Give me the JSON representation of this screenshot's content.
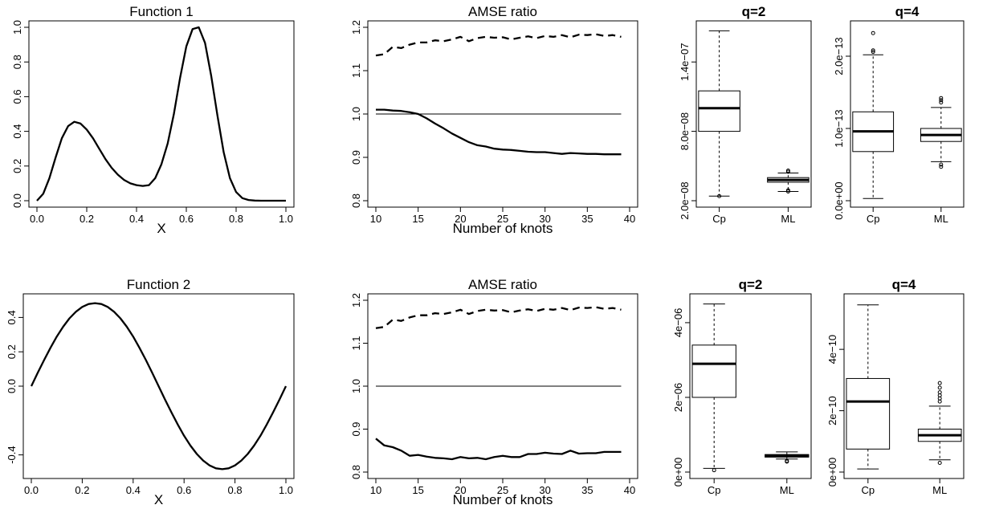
{
  "chart_data": [
    {
      "type": "line",
      "title": "Function 1",
      "xlabel": "X",
      "ylabel": "",
      "xlim": [
        0,
        1
      ],
      "ylim": [
        0,
        1
      ],
      "xticks": [
        0,
        0.2,
        0.4,
        0.6,
        0.8,
        1
      ],
      "xtick_labels": [
        "0.0",
        "0.2",
        "0.4",
        "0.6",
        "0.8",
        "1.0"
      ],
      "yticks": [
        0,
        0.2,
        0.4,
        0.6,
        0.8,
        1
      ],
      "ytick_labels": [
        "0.0",
        "0.2",
        "0.4",
        "0.6",
        "0.8",
        "1.0"
      ],
      "series": [
        {
          "x": [
            0,
            0.025,
            0.05,
            0.075,
            0.1,
            0.125,
            0.15,
            0.175,
            0.2,
            0.225,
            0.25,
            0.275,
            0.3,
            0.325,
            0.35,
            0.375,
            0.4,
            0.425,
            0.45,
            0.475,
            0.5,
            0.525,
            0.55,
            0.575,
            0.6,
            0.625,
            0.65,
            0.675,
            0.7,
            0.725,
            0.75,
            0.775,
            0.8,
            0.825,
            0.85,
            0.875,
            0.9,
            0.925,
            0.95,
            0.975,
            1
          ],
          "y": [
            0.0,
            0.04,
            0.13,
            0.25,
            0.36,
            0.43,
            0.455,
            0.445,
            0.41,
            0.36,
            0.3,
            0.24,
            0.19,
            0.15,
            0.12,
            0.1,
            0.09,
            0.085,
            0.09,
            0.13,
            0.21,
            0.33,
            0.5,
            0.71,
            0.89,
            0.99,
            1.0,
            0.91,
            0.72,
            0.49,
            0.28,
            0.13,
            0.05,
            0.015,
            0.004,
            0.001,
            0.0,
            0.0,
            0.0,
            0.0,
            0.0
          ]
        }
      ]
    },
    {
      "type": "line",
      "title": "AMSE ratio",
      "xlabel": "Number of knots",
      "ylabel": "",
      "xlim": [
        10,
        40
      ],
      "ylim": [
        0.8,
        1.2
      ],
      "xticks": [
        10,
        15,
        20,
        25,
        30,
        35,
        40
      ],
      "xtick_labels": [
        "10",
        "15",
        "20",
        "25",
        "30",
        "35",
        "40"
      ],
      "yticks": [
        0.8,
        0.9,
        1.0,
        1.1,
        1.2
      ],
      "ytick_labels": [
        "0.8",
        "0.9",
        "1.0",
        "1.1",
        "1.2"
      ],
      "reference_y": 1.0,
      "x": [
        10,
        11,
        12,
        13,
        14,
        15,
        16,
        17,
        18,
        19,
        20,
        21,
        22,
        23,
        24,
        25,
        26,
        27,
        28,
        29,
        30,
        31,
        32,
        33,
        34,
        35,
        36,
        37,
        38,
        39
      ],
      "series": [
        {
          "style": "dashed",
          "values": [
            1.135,
            1.138,
            1.155,
            1.152,
            1.16,
            1.165,
            1.165,
            1.17,
            1.168,
            1.172,
            1.178,
            1.168,
            1.175,
            1.178,
            1.176,
            1.177,
            1.172,
            1.176,
            1.179,
            1.175,
            1.18,
            1.178,
            1.182,
            1.177,
            1.183,
            1.182,
            1.184,
            1.18,
            1.182,
            1.178
          ]
        },
        {
          "style": "solid",
          "values": [
            1.01,
            1.01,
            1.008,
            1.007,
            1.004,
            1.0,
            0.99,
            0.978,
            0.967,
            0.955,
            0.945,
            0.935,
            0.928,
            0.925,
            0.92,
            0.918,
            0.917,
            0.915,
            0.913,
            0.912,
            0.912,
            0.91,
            0.908,
            0.91,
            0.909,
            0.908,
            0.908,
            0.907,
            0.907,
            0.907
          ]
        }
      ]
    },
    {
      "type": "box",
      "title": "q=2",
      "categories": [
        "Cp",
        "ML"
      ],
      "ylim": [
        2e-08,
        1.7e-07
      ],
      "yticks": [
        2e-08,
        8e-08,
        1.4e-07
      ],
      "ytick_labels": [
        "2.0e−08",
        "8.0e−08",
        "1.4e−07"
      ],
      "boxes": [
        {
          "label": "Cp",
          "whisker_low": 2.4e-08,
          "q1": 8e-08,
          "median": 1e-07,
          "q3": 1.15e-07,
          "whisker_high": 1.67e-07,
          "outliers": [
            2.4e-08
          ]
        },
        {
          "label": "ML",
          "whisker_low": 2.8e-08,
          "q1": 3.6e-08,
          "median": 3.8e-08,
          "q3": 4e-08,
          "whisker_high": 4.4e-08,
          "outliers": [
            4.5e-08,
            4.6e-08,
            2.8e-08,
            2.9e-08
          ]
        }
      ]
    },
    {
      "type": "box",
      "title": "q=4",
      "categories": [
        "Cp",
        "ML"
      ],
      "ylim": [
        0,
        2.4e-13
      ],
      "yticks": [
        0,
        1e-13,
        2e-13
      ],
      "ytick_labels": [
        "0.0e+00",
        "1.0e−13",
        "2.0e−13"
      ],
      "boxes": [
        {
          "label": "Cp",
          "whisker_low": 3e-15,
          "q1": 6.8e-14,
          "median": 9.6e-14,
          "q3": 1.23e-13,
          "whisker_high": 2.02e-13,
          "outliers": [
            2.32e-13,
            2.06e-13,
            2.08e-13
          ]
        },
        {
          "label": "ML",
          "whisker_low": 5.4e-14,
          "q1": 8.2e-14,
          "median": 9.1e-14,
          "q3": 1e-13,
          "whisker_high": 1.29e-13,
          "outliers": [
            1.36e-13,
            1.39e-13,
            1.42e-13,
            5e-14,
            4.7e-14
          ]
        }
      ]
    },
    {
      "type": "line",
      "title": "Function 2",
      "xlabel": "X",
      "ylabel": "",
      "xlim": [
        0,
        1
      ],
      "ylim": [
        -0.5,
        0.5
      ],
      "xticks": [
        0,
        0.2,
        0.4,
        0.6,
        0.8,
        1
      ],
      "xtick_labels": [
        "0.0",
        "0.2",
        "0.4",
        "0.6",
        "0.8",
        "1.0"
      ],
      "yticks": [
        -0.4,
        0,
        0.2,
        0.4
      ],
      "ytick_labels": [
        "-0.4",
        "0.0",
        "0.2",
        "0.4"
      ],
      "series": [
        {
          "x": [
            0,
            0.025,
            0.05,
            0.075,
            0.1,
            0.125,
            0.15,
            0.175,
            0.2,
            0.225,
            0.25,
            0.275,
            0.3,
            0.325,
            0.35,
            0.375,
            0.4,
            0.425,
            0.45,
            0.475,
            0.5,
            0.525,
            0.55,
            0.575,
            0.6,
            0.625,
            0.65,
            0.675,
            0.7,
            0.725,
            0.75,
            0.775,
            0.8,
            0.825,
            0.85,
            0.875,
            0.9,
            0.925,
            0.95,
            0.975,
            1
          ],
          "y": [
            0,
            0.077,
            0.152,
            0.223,
            0.289,
            0.346,
            0.395,
            0.433,
            0.461,
            0.478,
            0.483,
            0.478,
            0.461,
            0.433,
            0.395,
            0.346,
            0.289,
            0.223,
            0.152,
            0.077,
            0,
            -0.077,
            -0.152,
            -0.223,
            -0.289,
            -0.346,
            -0.395,
            -0.433,
            -0.461,
            -0.478,
            -0.483,
            -0.478,
            -0.461,
            -0.433,
            -0.395,
            -0.346,
            -0.289,
            -0.223,
            -0.152,
            -0.077,
            0
          ]
        }
      ]
    },
    {
      "type": "line",
      "title": "AMSE ratio",
      "xlabel": "Number of knots",
      "ylabel": "",
      "xlim": [
        10,
        40
      ],
      "ylim": [
        0.8,
        1.2
      ],
      "xticks": [
        10,
        15,
        20,
        25,
        30,
        35,
        40
      ],
      "xtick_labels": [
        "10",
        "15",
        "20",
        "25",
        "30",
        "35",
        "40"
      ],
      "yticks": [
        0.8,
        0.9,
        1.0,
        1.1,
        1.2
      ],
      "ytick_labels": [
        "0.8",
        "0.9",
        "1.0",
        "1.1",
        "1.2"
      ],
      "reference_y": 1.0,
      "x": [
        10,
        11,
        12,
        13,
        14,
        15,
        16,
        17,
        18,
        19,
        20,
        21,
        22,
        23,
        24,
        25,
        26,
        27,
        28,
        29,
        30,
        31,
        32,
        33,
        34,
        35,
        36,
        37,
        38,
        39
      ],
      "series": [
        {
          "style": "dashed",
          "values": [
            1.135,
            1.138,
            1.155,
            1.152,
            1.16,
            1.165,
            1.165,
            1.17,
            1.168,
            1.172,
            1.178,
            1.168,
            1.175,
            1.178,
            1.176,
            1.177,
            1.172,
            1.176,
            1.179,
            1.175,
            1.18,
            1.178,
            1.182,
            1.177,
            1.183,
            1.182,
            1.184,
            1.18,
            1.182,
            1.178
          ]
        },
        {
          "style": "solid",
          "values": [
            0.878,
            0.862,
            0.858,
            0.85,
            0.838,
            0.84,
            0.836,
            0.833,
            0.832,
            0.83,
            0.835,
            0.832,
            0.833,
            0.83,
            0.835,
            0.838,
            0.835,
            0.835,
            0.842,
            0.842,
            0.845,
            0.843,
            0.842,
            0.85,
            0.843,
            0.844,
            0.844,
            0.847,
            0.847,
            0.847
          ]
        }
      ]
    },
    {
      "type": "box",
      "title": "q=2",
      "categories": [
        "Cp",
        "ML"
      ],
      "ylim": [
        0,
        4.6e-06
      ],
      "yticks": [
        0,
        2e-06,
        4e-06
      ],
      "ytick_labels": [
        "0e+00",
        "2e−06",
        "4e−06"
      ],
      "boxes": [
        {
          "label": "Cp",
          "whisker_low": 1e-07,
          "q1": 2e-06,
          "median": 2.9e-06,
          "q3": 3.4e-06,
          "whisker_high": 4.5e-06,
          "outliers": [
            5e-08
          ]
        },
        {
          "label": "ML",
          "whisker_low": 3.5e-07,
          "q1": 4e-07,
          "median": 4.4e-07,
          "q3": 4.7e-07,
          "whisker_high": 5.4e-07,
          "outliers": [
            3e-07,
            2.8e-07
          ]
        }
      ]
    },
    {
      "type": "box",
      "title": "q=4",
      "categories": [
        "Cp",
        "ML"
      ],
      "ylim": [
        0,
        5.6e-10
      ],
      "yticks": [
        0,
        2e-10,
        4e-10
      ],
      "ytick_labels": [
        "0e+00",
        "2e−10",
        "4e−10"
      ],
      "boxes": [
        {
          "label": "Cp",
          "whisker_low": 1e-11,
          "q1": 7.5e-11,
          "median": 2.3e-10,
          "q3": 3.05e-10,
          "whisker_high": 5.45e-10,
          "outliers": []
        },
        {
          "label": "ML",
          "whisker_low": 4e-11,
          "q1": 1e-10,
          "median": 1.2e-10,
          "q3": 1.4e-10,
          "whisker_high": 2.15e-10,
          "outliers": [
            2.3e-10,
            2.4e-10,
            2.5e-10,
            2.6e-10,
            2.75e-10,
            2.9e-10,
            3e-11
          ]
        }
      ]
    }
  ]
}
